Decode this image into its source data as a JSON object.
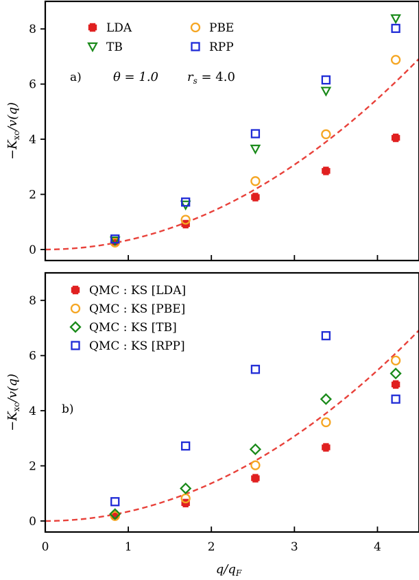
{
  "chart_data": [
    {
      "type": "scatter",
      "panel_label": "a)",
      "annotation": "θ = 1.0     rₛ = 4.0",
      "annotation_parts": [
        "θ = 1.0",
        "r",
        "s",
        " = 4.0"
      ],
      "ylabel": "−Kₓc/v(q)",
      "ylabel_parts": [
        "−K",
        "xc",
        "/v(q)"
      ],
      "xlim": [
        0,
        4.5
      ],
      "ylim": [
        -0.4,
        9.0
      ],
      "xticks": [
        1,
        2,
        3,
        4
      ],
      "yticks": [
        0,
        2,
        4,
        6,
        8
      ],
      "xtick_labels_shown": false,
      "legend_position": "top-left",
      "reference_curve": {
        "style": "dashed",
        "color": "#e8413a",
        "form": "quadratic",
        "coeff": 0.3416
      },
      "series": [
        {
          "name": "LDA",
          "marker": "plus",
          "color": "#e02020",
          "x": [
            0.84,
            1.69,
            2.53,
            3.38,
            4.22
          ],
          "y": [
            0.3,
            0.92,
            1.9,
            2.85,
            4.05
          ]
        },
        {
          "name": "PBE",
          "marker": "circle",
          "color": "#f5a623",
          "x": [
            0.84,
            1.69,
            2.53,
            3.38,
            4.22
          ],
          "y": [
            0.25,
            1.08,
            2.48,
            4.18,
            6.88
          ]
        },
        {
          "name": "TB",
          "marker": "triangle-down",
          "color": "#1a8a1a",
          "x": [
            0.84,
            1.69,
            2.53,
            3.38,
            4.22
          ],
          "y": [
            0.32,
            1.62,
            3.65,
            5.75,
            8.38
          ]
        },
        {
          "name": "RPP",
          "marker": "square",
          "color": "#1f2bd6",
          "x": [
            0.84,
            1.69,
            2.53,
            3.38,
            4.22
          ],
          "y": [
            0.38,
            1.72,
            4.2,
            6.15,
            8.02
          ]
        }
      ]
    },
    {
      "type": "scatter",
      "panel_label": "b)",
      "ylabel": "−Kₓc/v(q)",
      "ylabel_parts": [
        "−K",
        "xc",
        "/v(q)"
      ],
      "xlabel": "q/q_F",
      "xlabel_parts": [
        "q/q",
        "F"
      ],
      "xlim": [
        0,
        4.5
      ],
      "ylim": [
        -0.4,
        9.0
      ],
      "xticks": [
        0,
        1,
        2,
        3,
        4
      ],
      "yticks": [
        0,
        2,
        4,
        6,
        8
      ],
      "xtick_labels_shown": true,
      "legend_position": "top-left",
      "reference_curve": {
        "style": "dashed",
        "color": "#e8413a",
        "form": "quadratic",
        "coeff": 0.3416
      },
      "series": [
        {
          "name": "QMC : KS [LDA]",
          "marker": "plus",
          "color": "#e02020",
          "x": [
            0.84,
            1.69,
            2.53,
            3.38,
            4.22
          ],
          "y": [
            0.22,
            0.65,
            1.55,
            2.67,
            4.95
          ]
        },
        {
          "name": "QMC : KS [PBE]",
          "marker": "circle",
          "color": "#f5a623",
          "x": [
            0.84,
            1.69,
            2.53,
            3.38,
            4.22
          ],
          "y": [
            0.18,
            0.82,
            2.02,
            3.58,
            5.82
          ]
        },
        {
          "name": "QMC : KS [TB]",
          "marker": "diamond",
          "color": "#1a8a1a",
          "x": [
            0.84,
            1.69,
            2.53,
            3.38,
            4.22
          ],
          "y": [
            0.25,
            1.18,
            2.6,
            4.42,
            5.35
          ]
        },
        {
          "name": "QMC : KS [RPP]",
          "marker": "square",
          "color": "#1f2bd6",
          "x": [
            0.84,
            1.69,
            2.53,
            3.38,
            4.22
          ],
          "y": [
            0.7,
            2.72,
            5.5,
            6.72,
            4.42
          ]
        }
      ]
    }
  ]
}
